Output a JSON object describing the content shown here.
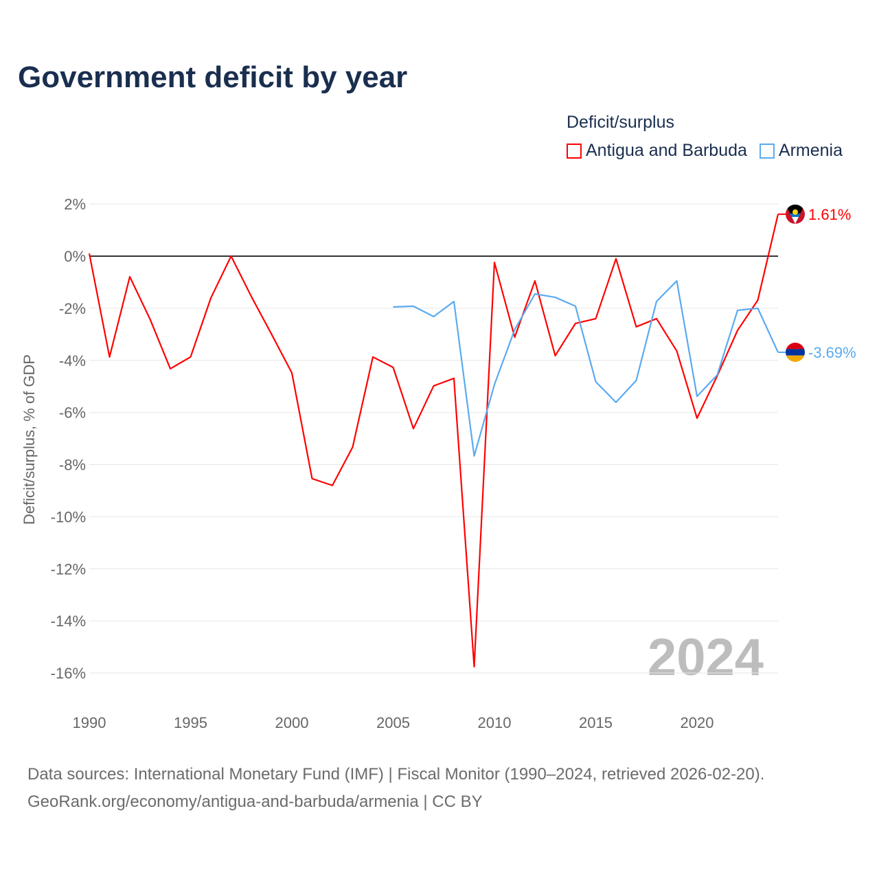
{
  "title": "Government deficit by year",
  "legend": {
    "title": "Deficit/surplus"
  },
  "chart_data": {
    "type": "line",
    "title": "Government deficit by year",
    "xlabel": "",
    "ylabel": "Deficit/surplus, % of GDP",
    "xlim": [
      1990,
      2024
    ],
    "ylim": [
      -17,
      2.5
    ],
    "x_ticks": [
      1990,
      1995,
      2000,
      2005,
      2010,
      2015,
      2020
    ],
    "x_tick_labels": [
      "1990",
      "1995",
      "2000",
      "2005",
      "2010",
      "2015",
      "2020"
    ],
    "y_ticks": [
      2,
      0,
      -2,
      -4,
      -6,
      -8,
      -10,
      -12,
      -14,
      -16
    ],
    "y_tick_labels": [
      "2%",
      "0%",
      "-2%",
      "-4%",
      "-6%",
      "-8%",
      "-10%",
      "-12%",
      "-14%",
      "-16%"
    ],
    "grid": true,
    "legend_position": "top-right",
    "year_watermark": "2024",
    "series": [
      {
        "name": "Antigua and Barbuda",
        "color": "#ff0000",
        "end_label": "1.61%",
        "x": [
          1990,
          1991,
          1992,
          1993,
          1994,
          1995,
          1996,
          1997,
          1998,
          1999,
          2000,
          2001,
          2002,
          2003,
          2004,
          2005,
          2006,
          2007,
          2008,
          2009,
          2010,
          2011,
          2012,
          2013,
          2014,
          2015,
          2016,
          2017,
          2018,
          2019,
          2020,
          2021,
          2022,
          2023,
          2024
        ],
        "values": [
          0.1,
          -3.87,
          -0.79,
          -2.42,
          -4.32,
          -3.87,
          -1.61,
          0.0,
          -1.55,
          -3.0,
          -4.48,
          -8.54,
          -8.8,
          -7.33,
          -3.87,
          -4.27,
          -6.62,
          -4.98,
          -4.69,
          -15.76,
          -0.24,
          -3.11,
          -0.95,
          -3.82,
          -2.58,
          -2.4,
          -0.1,
          -2.71,
          -2.4,
          -3.64,
          -6.22,
          -4.59,
          -2.85,
          -1.69,
          1.61
        ]
      },
      {
        "name": "Armenia",
        "color": "#5aaaf0",
        "end_label": "-3.69%",
        "x": [
          2005,
          2006,
          2007,
          2008,
          2009,
          2010,
          2011,
          2012,
          2013,
          2014,
          2015,
          2016,
          2017,
          2018,
          2019,
          2020,
          2021,
          2022,
          2023,
          2024
        ],
        "values": [
          -1.95,
          -1.92,
          -2.32,
          -1.74,
          -7.67,
          -4.93,
          -2.82,
          -1.45,
          -1.58,
          -1.92,
          -4.82,
          -5.61,
          -4.77,
          -1.74,
          -0.95,
          -5.38,
          -4.56,
          -2.08,
          -2.0,
          -3.69
        ]
      }
    ]
  },
  "source": {
    "line1": "Data sources: International Monetary Fund (IMF) | Fiscal Monitor (1990–2024, retrieved 2026-02-20).",
    "line2": "GeoRank.org/economy/antigua-and-barbuda/armenia | CC BY"
  }
}
